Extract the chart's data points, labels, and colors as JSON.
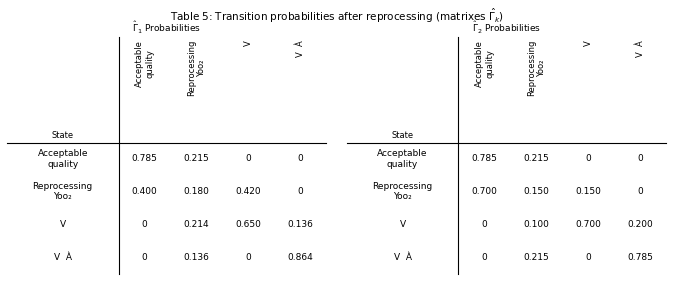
{
  "title": "Table 5: Transition probabilities after reprocessing (matrixes $\\hat{\\Gamma}_k$)",
  "left_subtitle": "$\\hat{\\Gamma}_1$ Probabilities",
  "right_subtitle": "$\\hat{\\Gamma}_2$ Probabilities",
  "left_col_headers_rot": [
    "Acceptable\nquality",
    "Reprocessing\nYoo₂",
    "V",
    "V  À"
  ],
  "right_col_headers_rot": [
    "Acceptable\nquality",
    "Reprocessing\nYoo₂",
    "V",
    "V  À"
  ],
  "row_header_label": "State",
  "row_headers": [
    "Acceptable\nquality",
    "Reprocessing\nYoo₂",
    "V",
    "V  À"
  ],
  "left_data": [
    [
      "0.785",
      "0.215",
      "0",
      "0"
    ],
    [
      "0.400",
      "0.180",
      "0.420",
      "0"
    ],
    [
      "0",
      "0.214",
      "0.650",
      "0.136"
    ],
    [
      "0",
      "0.136",
      "0",
      "0.864"
    ]
  ],
  "right_data": [
    [
      "0.785",
      "0.215",
      "0",
      "0"
    ],
    [
      "0.700",
      "0.150",
      "0.150",
      "0"
    ],
    [
      "0",
      "0.100",
      "0.700",
      "0.200"
    ],
    [
      "0",
      "0.215",
      "0",
      "0.785"
    ]
  ],
  "bg_color": "#ffffff",
  "text_color": "#000000",
  "line_color": "#000000",
  "title_fontsize": 7.5,
  "subtitle_fontsize": 6.5,
  "data_fontsize": 6.5,
  "header_fontsize": 6.0,
  "row_label_fontsize": 6.5,
  "figwidth": 6.73,
  "figheight": 2.85,
  "dpi": 100
}
